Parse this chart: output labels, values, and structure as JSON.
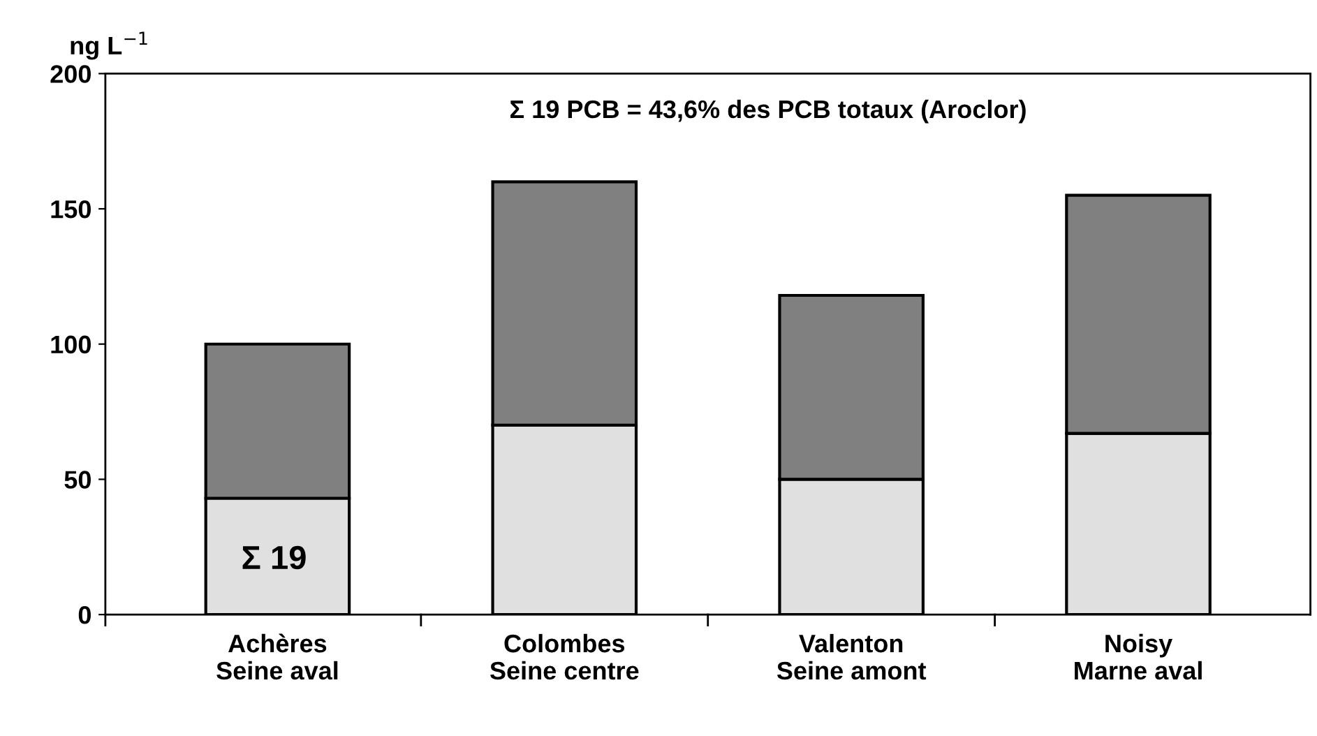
{
  "chart_data": {
    "type": "bar",
    "stacked": true,
    "ylabel": "ng L$^{−1}$",
    "categories": [
      "Achères\nSeine aval",
      "Colombes\nSeine centre",
      "Valenton\nSeine amont",
      "Noisy\nMarne aval"
    ],
    "series": [
      {
        "color": "#e0e0e0",
        "values": [
          43,
          70,
          50,
          67
        ]
      },
      {
        "color": "#808080",
        "values": [
          57,
          90,
          68,
          88
        ]
      }
    ],
    "ylim": [
      0,
      200
    ],
    "yticks": [
      0,
      50,
      100,
      150,
      200
    ],
    "annotations": [
      "Σ 19 PCB = 43,6% des PCB totaux (Aroclor)",
      "Σ 19"
    ]
  }
}
